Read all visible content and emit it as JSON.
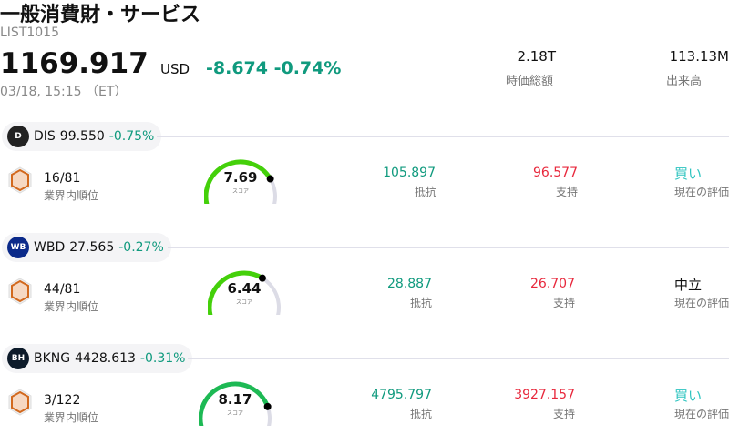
{
  "header": {
    "title": "一般消費財・サービス",
    "code": "LIST1015",
    "price": "1169.917",
    "currency": "USD",
    "change": "-8.674",
    "change_pct": "-0.74%",
    "time": "03/18, 15:15 （ET）",
    "market_cap": {
      "value": "2.18T",
      "label": "時価総額"
    },
    "volume": {
      "value": "113.13M",
      "label": "出来高"
    }
  },
  "colors": {
    "up_green": "#109a7e",
    "down_red": "#e8283c",
    "buy": "#2ec4c0"
  },
  "stocks": [
    {
      "ticker": "DIS",
      "price": "99.550",
      "pct": "-0.75%",
      "rank": "16/81",
      "rank_label": "業界内順位",
      "score": 7.69,
      "score_text": "7.69",
      "score_label": "スコア",
      "resistance": "105.897",
      "resistance_label": "抵抗",
      "support": "96.577",
      "support_label": "支持",
      "rating": "買い",
      "rating_label": "現在の評価",
      "logo_icon": "disney-logo"
    },
    {
      "ticker": "WBD",
      "price": "27.565",
      "pct": "-0.27%",
      "rank": "44/81",
      "rank_label": "業界内順位",
      "score": 6.44,
      "score_text": "6.44",
      "score_label": "スコア",
      "resistance": "28.887",
      "resistance_label": "抵抗",
      "support": "26.707",
      "support_label": "支持",
      "rating": "中立",
      "rating_label": "現在の評価",
      "logo_icon": "wb-logo"
    },
    {
      "ticker": "BKNG",
      "price": "4428.613",
      "pct": "-0.31%",
      "rank": "3/122",
      "rank_label": "業界内順位",
      "score": 8.17,
      "score_text": "8.17",
      "score_label": "スコア",
      "resistance": "4795.797",
      "resistance_label": "抵抗",
      "support": "3927.157",
      "support_label": "支持",
      "rating": "買い",
      "rating_label": "現在の評価",
      "logo_icon": "booking-holdings-logo"
    }
  ]
}
